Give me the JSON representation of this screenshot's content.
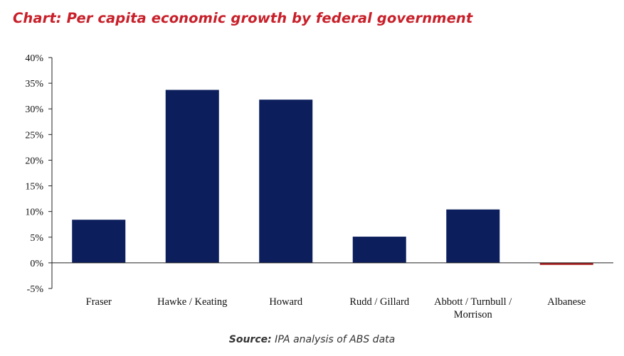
{
  "chart_data": {
    "type": "bar",
    "title": "Chart: Per capita economic growth by federal government",
    "categories": [
      [
        "Fraser"
      ],
      [
        "Hawke / Keating"
      ],
      [
        "Howard"
      ],
      [
        "Rudd / Gillard"
      ],
      [
        "Abbott / Turnbull /",
        "Morrison"
      ],
      [
        "Albanese"
      ]
    ],
    "values": [
      8.4,
      33.7,
      31.8,
      5.1,
      10.4,
      -0.4
    ],
    "value_unit": "%",
    "ylim": [
      -5,
      40
    ],
    "yticks": [
      40,
      35,
      30,
      25,
      20,
      15,
      10,
      5,
      0,
      -5
    ],
    "ytick_labels": [
      "40%",
      "35%",
      "30%",
      "25%",
      "20%",
      "15%",
      "10%",
      "5%",
      "0%",
      "-5%"
    ],
    "xlabel": "",
    "ylabel": "",
    "grid": false,
    "legend": "none",
    "colors": {
      "positive": "#0c1f5c",
      "negative": "#a81c1c",
      "title": "#c8202a"
    }
  },
  "source": {
    "prefix": "Source:",
    "text": " IPA analysis of ABS data"
  }
}
